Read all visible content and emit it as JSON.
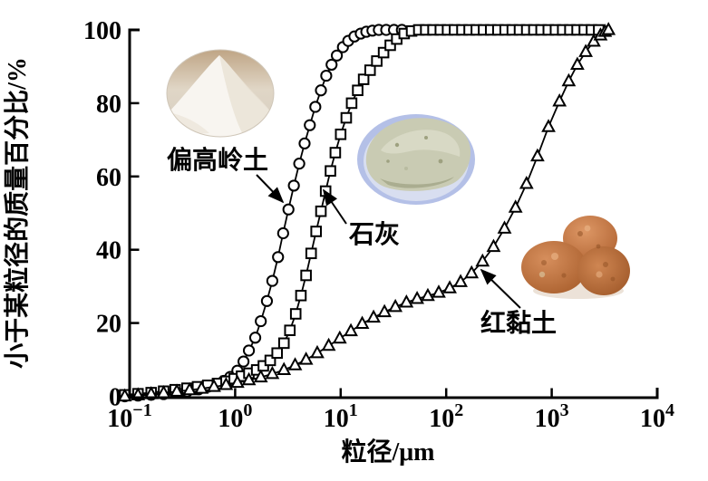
{
  "figure": {
    "background": "#ffffff",
    "axis_color": "#000000",
    "marker_fill": "#ffffff"
  },
  "chart_data": {
    "type": "line",
    "x_scale": "log",
    "grid": false,
    "legend_position": "none",
    "x_label": "粒径/μm",
    "y_label": "小于某粒径的质量百分比/%",
    "x_range": [
      0.1,
      10000
    ],
    "y_range": [
      0,
      100
    ],
    "x_tick_exponents": [
      -1,
      0,
      1,
      2,
      3,
      4
    ],
    "y_ticks": [
      0,
      20,
      40,
      60,
      80,
      100
    ],
    "series": [
      {
        "id": "metakaolin",
        "name": "偏高岭土",
        "marker": "circle",
        "color": "#000000",
        "points": [
          [
            0.09,
            0
          ],
          [
            0.12,
            0.2
          ],
          [
            0.16,
            0.4
          ],
          [
            0.21,
            0.6
          ],
          [
            0.27,
            0.9
          ],
          [
            0.35,
            1.3
          ],
          [
            0.45,
            1.9
          ],
          [
            0.55,
            2.6
          ],
          [
            0.65,
            3.3
          ],
          [
            0.78,
            4.2
          ],
          [
            0.9,
            5.3
          ],
          [
            1.05,
            7
          ],
          [
            1.2,
            9.5
          ],
          [
            1.35,
            12.5
          ],
          [
            1.55,
            16
          ],
          [
            1.75,
            20.5
          ],
          [
            2,
            26
          ],
          [
            2.25,
            31.5
          ],
          [
            2.55,
            38
          ],
          [
            2.85,
            44.5
          ],
          [
            3.2,
            51
          ],
          [
            3.6,
            57.5
          ],
          [
            4.05,
            63.5
          ],
          [
            4.55,
            69
          ],
          [
            5.1,
            74
          ],
          [
            5.75,
            79
          ],
          [
            6.5,
            83.5
          ],
          [
            7.3,
            87.5
          ],
          [
            8.2,
            90.5
          ],
          [
            9.2,
            93
          ],
          [
            10.5,
            95.3
          ],
          [
            11.8,
            97
          ],
          [
            13.5,
            98.2
          ],
          [
            15.5,
            99
          ],
          [
            17.5,
            99.5
          ],
          [
            20,
            99.8
          ],
          [
            23,
            100
          ],
          [
            27,
            100
          ],
          [
            32,
            100
          ],
          [
            38,
            100
          ]
        ]
      },
      {
        "id": "lime",
        "name": "石灰",
        "marker": "square",
        "color": "#000000",
        "points": [
          [
            0.09,
            0.4
          ],
          [
            0.12,
            0.7
          ],
          [
            0.16,
            1
          ],
          [
            0.21,
            1.4
          ],
          [
            0.27,
            1.8
          ],
          [
            0.35,
            2.2
          ],
          [
            0.44,
            2.6
          ],
          [
            0.55,
            3
          ],
          [
            0.68,
            3.5
          ],
          [
            0.82,
            4.1
          ],
          [
            0.98,
            4.8
          ],
          [
            1.15,
            5.5
          ],
          [
            1.35,
            6.3
          ],
          [
            1.6,
            7.2
          ],
          [
            1.85,
            8.3
          ],
          [
            2.15,
            9.8
          ],
          [
            2.5,
            11.8
          ],
          [
            2.9,
            14.5
          ],
          [
            3.3,
            18
          ],
          [
            3.75,
            22.5
          ],
          [
            4.2,
            27.5
          ],
          [
            4.7,
            33
          ],
          [
            5.25,
            39
          ],
          [
            5.85,
            45
          ],
          [
            6.5,
            50.5
          ],
          [
            7.2,
            56
          ],
          [
            8,
            61.5
          ],
          [
            8.9,
            66.5
          ],
          [
            10,
            71.5
          ],
          [
            11.3,
            76
          ],
          [
            12.7,
            80
          ],
          [
            14.5,
            83.5
          ],
          [
            16.5,
            86.5
          ],
          [
            19,
            89
          ],
          [
            22,
            91.5
          ],
          [
            25.5,
            93.8
          ],
          [
            29.5,
            95.8
          ],
          [
            34,
            97.5
          ],
          [
            40,
            99
          ],
          [
            47,
            99.7
          ],
          [
            55,
            100
          ],
          [
            64,
            100
          ],
          [
            75,
            100
          ],
          [
            88,
            100
          ],
          [
            103,
            100
          ],
          [
            120,
            100
          ],
          [
            141,
            100
          ],
          [
            165,
            100
          ],
          [
            193,
            100
          ],
          [
            226,
            100
          ],
          [
            264,
            100
          ],
          [
            309,
            100
          ],
          [
            362,
            100
          ],
          [
            423,
            100
          ],
          [
            495,
            100
          ],
          [
            580,
            100
          ],
          [
            678,
            100
          ],
          [
            793,
            100
          ],
          [
            928,
            100
          ],
          [
            1086,
            100
          ],
          [
            1271,
            100
          ],
          [
            1487,
            100
          ],
          [
            1740,
            100
          ],
          [
            2036,
            100
          ],
          [
            2382,
            100
          ],
          [
            2787,
            100
          ]
        ]
      },
      {
        "id": "red-clay",
        "name": "红黏土",
        "marker": "triangle",
        "color": "#000000",
        "points": [
          [
            0.09,
            0
          ],
          [
            0.12,
            0.3
          ],
          [
            0.16,
            0.6
          ],
          [
            0.21,
            0.9
          ],
          [
            0.28,
            1.3
          ],
          [
            0.37,
            1.7
          ],
          [
            0.48,
            2.1
          ],
          [
            0.63,
            2.6
          ],
          [
            0.82,
            3.1
          ],
          [
            1.05,
            3.7
          ],
          [
            1.35,
            4.4
          ],
          [
            1.75,
            5.2
          ],
          [
            2.25,
            6.1
          ],
          [
            2.9,
            7.2
          ],
          [
            3.7,
            8.5
          ],
          [
            4.7,
            10
          ],
          [
            6,
            11.8
          ],
          [
            7.7,
            13.8
          ],
          [
            9.8,
            15.8
          ],
          [
            12.5,
            17.8
          ],
          [
            16,
            19.8
          ],
          [
            20.5,
            21.5
          ],
          [
            26,
            23
          ],
          [
            33,
            24.4
          ],
          [
            42,
            25.6
          ],
          [
            53,
            26.6
          ],
          [
            67,
            27.4
          ],
          [
            85,
            28.3
          ],
          [
            108,
            29.5
          ],
          [
            137,
            31.2
          ],
          [
            174,
            33.6
          ],
          [
            221,
            36.8
          ],
          [
            281,
            40.8
          ],
          [
            357,
            45.8
          ],
          [
            454,
            51.5
          ],
          [
            577,
            58
          ],
          [
            733,
            65.5
          ],
          [
            932,
            73.5
          ],
          [
            1185,
            80.5
          ],
          [
            1450,
            86
          ],
          [
            1750,
            90.5
          ],
          [
            2100,
            94
          ],
          [
            2500,
            96.8
          ],
          [
            2900,
            98.5
          ],
          [
            3200,
            99.5
          ],
          [
            3450,
            100
          ]
        ]
      }
    ],
    "annotations": [
      {
        "label": "偏高岭土",
        "points_to_series": "metakaolin"
      },
      {
        "label": "石灰",
        "points_to_series": "lime"
      },
      {
        "label": "红黏土",
        "points_to_series": "red-clay"
      }
    ]
  },
  "photos": [
    {
      "name": "metakaolin-photo",
      "dominant_color": "#f5f1ea"
    },
    {
      "name": "lime-photo",
      "dominant_color": "#c9cbb3"
    },
    {
      "name": "red-clay-photo",
      "dominant_color": "#bf7141"
    }
  ]
}
